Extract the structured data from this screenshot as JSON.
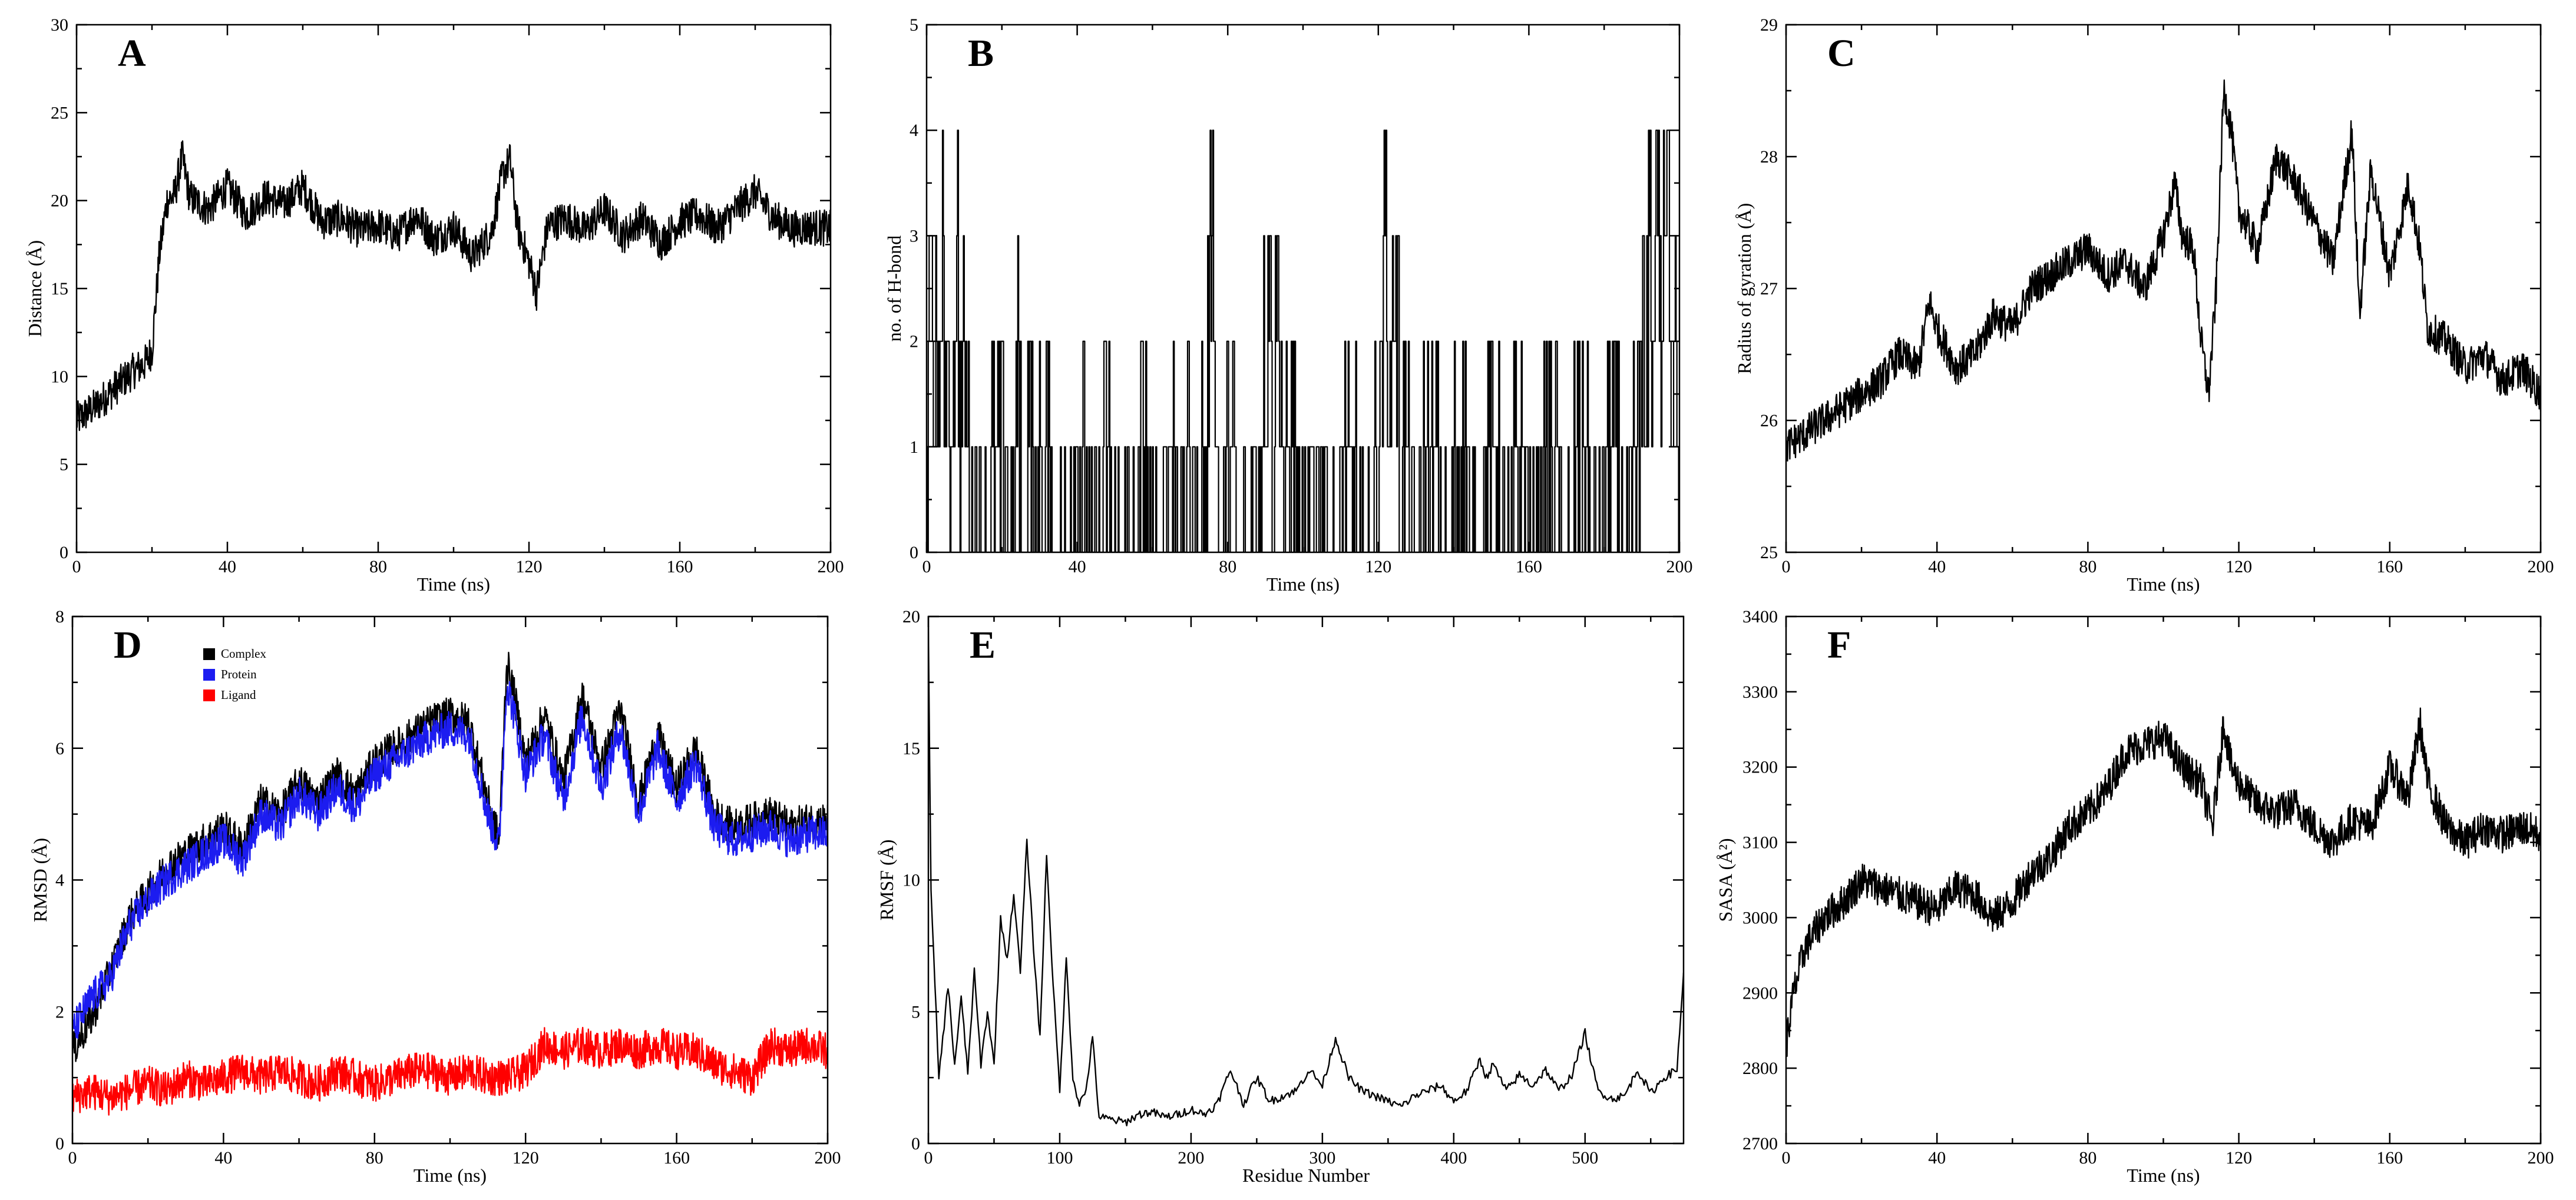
{
  "chart_data": [
    {
      "id": "A",
      "panel_label": "A",
      "type": "line",
      "title": "",
      "xlabel": "Time (ns)",
      "ylabel": "Distance (Å)",
      "xlim": [
        0,
        200
      ],
      "ylim": [
        0,
        30
      ],
      "xticks": [
        0,
        40,
        80,
        120,
        160,
        200
      ],
      "yticks": [
        0,
        5,
        10,
        15,
        20,
        25,
        30
      ],
      "series": [
        {
          "name": "Distance",
          "color": "#000000",
          "x": [
            0,
            5,
            10,
            15,
            18,
            20,
            22,
            24,
            26,
            28,
            30,
            35,
            40,
            45,
            50,
            55,
            60,
            65,
            70,
            75,
            80,
            85,
            90,
            95,
            100,
            105,
            110,
            113,
            115,
            117,
            120,
            122,
            125,
            130,
            135,
            140,
            145,
            150,
            155,
            160,
            165,
            170,
            175,
            180,
            185,
            190,
            195,
            200
          ],
          "values": [
            7.5,
            8.3,
            9.3,
            10.3,
            10.7,
            11.5,
            17,
            20,
            20.3,
            22.5,
            20.2,
            19.5,
            20.8,
            19.2,
            20.2,
            19.8,
            20.8,
            18.8,
            19,
            18.3,
            18.6,
            18,
            19.2,
            17.8,
            18.5,
            16.8,
            18.2,
            21.5,
            22.3,
            18.5,
            16.5,
            14.8,
            18.6,
            19,
            18.3,
            19.5,
            18,
            19,
            17.6,
            18.8,
            19.2,
            18.4,
            19.5,
            20.5,
            19,
            18.4,
            18.5,
            18.4
          ]
        }
      ]
    },
    {
      "id": "B",
      "panel_label": "B",
      "type": "line",
      "title": "",
      "xlabel": "Time (ns)",
      "ylabel": "no. of H-bond",
      "xlim": [
        0,
        200
      ],
      "ylim": [
        0,
        5
      ],
      "xticks": [
        0,
        40,
        80,
        120,
        160,
        200
      ],
      "yticks": [
        0,
        1,
        2,
        3,
        4,
        5
      ],
      "series": [
        {
          "name": "H-bonds",
          "color": "#000000",
          "step": true,
          "x": [
            0,
            1,
            2,
            3,
            4,
            5,
            6,
            7,
            8,
            9,
            10,
            11,
            12,
            13,
            14,
            20,
            23,
            24,
            25,
            26,
            27,
            28,
            29,
            30,
            31,
            32,
            35,
            40,
            45,
            48,
            50,
            55,
            58,
            60,
            65,
            68,
            70,
            72,
            74,
            75,
            76,
            77,
            78,
            80,
            84,
            88,
            90,
            91,
            92,
            93,
            94,
            95,
            96,
            100,
            104,
            108,
            112,
            116,
            120,
            121,
            122,
            123,
            124,
            125,
            126,
            130,
            134,
            138,
            142,
            146,
            150,
            154,
            158,
            162,
            166,
            170,
            174,
            178,
            182,
            186,
            189,
            190,
            191,
            192,
            193,
            194,
            195,
            196,
            197,
            198,
            199,
            200
          ],
          "values": [
            1,
            3,
            2,
            1,
            3,
            2,
            1,
            2,
            3,
            1,
            2,
            1,
            0,
            1,
            0,
            1,
            0,
            2,
            1,
            0,
            2,
            1,
            0,
            1,
            0,
            1,
            0,
            1,
            0,
            1,
            0,
            0,
            1,
            0,
            1,
            0,
            1,
            0,
            1,
            2,
            4,
            1,
            0,
            1,
            0,
            1,
            2,
            3,
            1,
            3,
            2,
            0,
            1,
            0,
            1,
            0,
            1,
            0,
            1,
            2,
            3,
            1,
            3,
            2,
            1,
            0,
            1,
            0,
            1,
            0,
            1,
            0,
            1,
            0,
            1,
            0,
            1,
            0,
            1,
            0,
            1,
            2,
            1,
            3,
            2,
            4,
            2,
            3,
            4,
            2,
            3,
            1
          ]
        }
      ]
    },
    {
      "id": "C",
      "panel_label": "C",
      "type": "line",
      "title": "",
      "xlabel": "Time (ns)",
      "ylabel": "Radius of gyration (Å)",
      "xlim": [
        0,
        200
      ],
      "ylim": [
        25,
        29
      ],
      "xticks": [
        0,
        40,
        80,
        120,
        160,
        200
      ],
      "yticks": [
        25,
        26,
        27,
        28,
        29
      ],
      "series": [
        {
          "name": "Radius of gyration",
          "color": "#000000",
          "x": [
            0,
            5,
            10,
            15,
            20,
            25,
            30,
            35,
            38,
            40,
            45,
            50,
            55,
            60,
            65,
            70,
            75,
            80,
            85,
            90,
            95,
            100,
            103,
            105,
            108,
            110,
            112,
            114,
            116,
            118,
            120,
            125,
            130,
            135,
            140,
            145,
            150,
            152,
            155,
            160,
            165,
            168,
            170,
            175,
            180,
            185,
            190,
            195,
            200
          ],
          "values": [
            25.8,
            25.9,
            26.0,
            26.1,
            26.2,
            26.3,
            26.5,
            26.4,
            26.9,
            26.7,
            26.4,
            26.5,
            26.8,
            26.7,
            27.0,
            27.1,
            27.2,
            27.3,
            27.1,
            27.2,
            27.0,
            27.4,
            27.8,
            27.4,
            27.3,
            26.6,
            26.2,
            27.0,
            28.5,
            28.2,
            27.6,
            27.3,
            28.0,
            27.8,
            27.5,
            27.2,
            28.2,
            26.8,
            27.9,
            27.1,
            27.8,
            27.3,
            26.7,
            26.6,
            26.4,
            26.5,
            26.3,
            26.4,
            26.2
          ]
        }
      ]
    },
    {
      "id": "D",
      "panel_label": "D",
      "type": "line",
      "title": "",
      "xlabel": "Time (ns)",
      "ylabel": "RMSD (Å)",
      "xlim": [
        0,
        200
      ],
      "ylim": [
        0,
        8
      ],
      "xticks": [
        0,
        40,
        80,
        120,
        160,
        200
      ],
      "yticks": [
        0,
        2,
        4,
        6,
        8
      ],
      "legend_position": "top-left",
      "series": [
        {
          "name": "Complex",
          "color": "#000000",
          "x": [
            0,
            5,
            10,
            15,
            20,
            25,
            30,
            35,
            40,
            45,
            50,
            55,
            60,
            65,
            70,
            75,
            80,
            85,
            90,
            95,
            100,
            105,
            110,
            113,
            115,
            117,
            120,
            125,
            130,
            135,
            140,
            145,
            150,
            155,
            160,
            165,
            170,
            175,
            180,
            185,
            190,
            195,
            200
          ],
          "values": [
            1.4,
            1.9,
            2.6,
            3.4,
            3.8,
            4.2,
            4.4,
            4.6,
            4.8,
            4.5,
            5.2,
            5.0,
            5.5,
            5.2,
            5.6,
            5.3,
            5.8,
            6.0,
            6.2,
            6.4,
            6.5,
            6.4,
            5.2,
            4.6,
            7.3,
            6.8,
            5.8,
            6.5,
            5.5,
            6.8,
            5.7,
            6.6,
            5.2,
            6.2,
            5.4,
            6.0,
            5.0,
            4.8,
            4.9,
            5.0,
            4.8,
            4.9,
            4.9
          ]
        },
        {
          "name": "Protein",
          "color": "#1c1cf0",
          "x": [
            0,
            5,
            10,
            15,
            20,
            25,
            30,
            35,
            40,
            45,
            50,
            55,
            60,
            65,
            70,
            75,
            80,
            85,
            90,
            95,
            100,
            105,
            110,
            113,
            115,
            117,
            120,
            125,
            130,
            135,
            140,
            145,
            150,
            155,
            160,
            165,
            170,
            175,
            180,
            185,
            190,
            195,
            200
          ],
          "values": [
            1.7,
            2.2,
            2.5,
            3.3,
            3.7,
            4.0,
            4.2,
            4.4,
            4.6,
            4.3,
            5.0,
            4.8,
            5.3,
            5.0,
            5.4,
            5.1,
            5.6,
            5.8,
            6.0,
            6.2,
            6.3,
            6.2,
            5.0,
            4.5,
            7.0,
            6.5,
            5.6,
            6.2,
            5.2,
            6.5,
            5.4,
            6.3,
            5.0,
            6.0,
            5.2,
            5.8,
            4.8,
            4.6,
            4.7,
            4.8,
            4.6,
            4.7,
            4.7
          ]
        },
        {
          "name": "Ligand",
          "color": "#ff0000",
          "x": [
            0,
            5,
            10,
            15,
            20,
            25,
            30,
            35,
            40,
            45,
            50,
            55,
            60,
            65,
            70,
            75,
            80,
            85,
            90,
            95,
            100,
            105,
            110,
            115,
            120,
            125,
            130,
            135,
            140,
            145,
            150,
            155,
            160,
            165,
            170,
            175,
            180,
            185,
            190,
            195,
            200
          ],
          "values": [
            0.7,
            0.8,
            0.7,
            0.8,
            0.9,
            0.8,
            1.0,
            0.9,
            1.0,
            1.1,
            1.0,
            1.1,
            1.0,
            0.9,
            1.1,
            1.0,
            0.9,
            1.0,
            1.1,
            1.1,
            1.0,
            1.1,
            1.0,
            1.0,
            1.1,
            1.5,
            1.4,
            1.5,
            1.4,
            1.5,
            1.4,
            1.5,
            1.4,
            1.4,
            1.2,
            1.1,
            1.0,
            1.5,
            1.4,
            1.5,
            1.4
          ]
        }
      ]
    },
    {
      "id": "E",
      "panel_label": "E",
      "type": "line",
      "title": "",
      "xlabel": "Residue Number",
      "ylabel": "RMSF (Å)",
      "xlim": [
        0,
        575
      ],
      "ylim": [
        0,
        20
      ],
      "xticks": [
        0,
        100,
        200,
        300,
        400,
        500
      ],
      "yticks": [
        0,
        5,
        10,
        15,
        20
      ],
      "series": [
        {
          "name": "RMSF",
          "color": "#000000",
          "x": [
            0,
            2,
            8,
            15,
            20,
            25,
            30,
            35,
            40,
            45,
            50,
            55,
            60,
            65,
            70,
            75,
            80,
            85,
            90,
            95,
            100,
            105,
            110,
            115,
            120,
            125,
            130,
            140,
            150,
            160,
            170,
            180,
            190,
            200,
            210,
            220,
            230,
            240,
            250,
            260,
            270,
            280,
            290,
            300,
            310,
            320,
            330,
            340,
            350,
            360,
            370,
            380,
            390,
            400,
            410,
            420,
            425,
            430,
            440,
            450,
            460,
            470,
            480,
            490,
            500,
            505,
            510,
            520,
            530,
            540,
            550,
            560,
            570,
            575
          ],
          "values": [
            19.5,
            9.5,
            2.5,
            6.0,
            3.0,
            5.5,
            2.7,
            6.5,
            3.0,
            5.0,
            3.0,
            8.5,
            7.0,
            9.5,
            6.5,
            11.5,
            7.5,
            4.0,
            11.0,
            6.0,
            2.0,
            7.0,
            2.5,
            1.5,
            2.0,
            4.0,
            1.0,
            0.9,
            0.8,
            1.1,
            1.2,
            1.0,
            1.1,
            1.3,
            1.1,
            1.5,
            2.8,
            1.5,
            2.5,
            1.6,
            1.8,
            2.0,
            2.8,
            2.2,
            4.0,
            2.5,
            2.0,
            1.8,
            1.6,
            1.4,
            1.8,
            2.0,
            2.2,
            1.6,
            2.0,
            3.2,
            2.5,
            3.0,
            2.0,
            2.6,
            2.2,
            2.8,
            2.0,
            2.6,
            4.2,
            3.0,
            2.0,
            1.7,
            1.8,
            2.8,
            1.9,
            2.5,
            2.8,
            6.5
          ]
        }
      ]
    },
    {
      "id": "F",
      "panel_label": "F",
      "type": "line",
      "title": "",
      "xlabel": "Time (ns)",
      "ylabel": "SASA (Å²)",
      "xlim": [
        0,
        200
      ],
      "ylim": [
        2700,
        3400
      ],
      "xticks": [
        0,
        40,
        80,
        120,
        160,
        200
      ],
      "yticks": [
        2700,
        2800,
        2900,
        3000,
        3100,
        3200,
        3300,
        3400
      ],
      "series": [
        {
          "name": "SASA",
          "color": "#000000",
          "x": [
            0,
            2,
            5,
            10,
            15,
            20,
            25,
            30,
            35,
            40,
            45,
            50,
            55,
            60,
            65,
            70,
            75,
            80,
            85,
            90,
            95,
            100,
            105,
            110,
            113,
            116,
            118,
            120,
            125,
            130,
            135,
            140,
            145,
            150,
            155,
            160,
            165,
            168,
            170,
            175,
            180,
            185,
            190,
            195,
            200
          ],
          "values": [
            2830,
            2900,
            2960,
            3000,
            3020,
            3050,
            3040,
            3030,
            3020,
            3010,
            3040,
            3030,
            3000,
            3020,
            3060,
            3080,
            3120,
            3140,
            3170,
            3220,
            3230,
            3240,
            3200,
            3180,
            3120,
            3260,
            3200,
            3180,
            3150,
            3140,
            3150,
            3120,
            3100,
            3130,
            3120,
            3200,
            3160,
            3260,
            3180,
            3120,
            3100,
            3120,
            3110,
            3120,
            3110
          ]
        }
      ]
    }
  ]
}
